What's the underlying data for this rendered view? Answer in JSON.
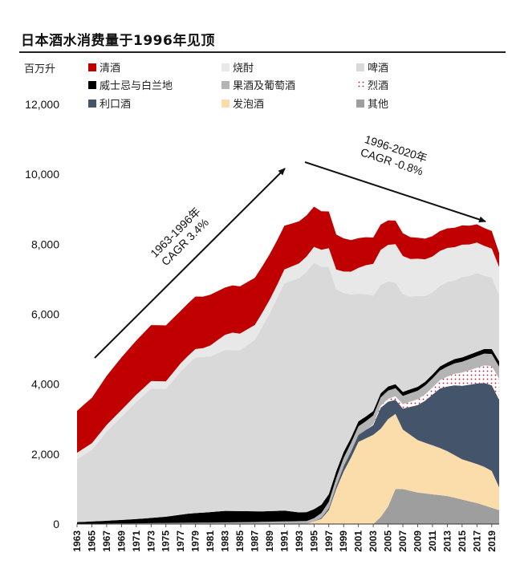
{
  "chart_data": {
    "type": "area",
    "title": "日本酒水消费量于1996年见顶",
    "ylabel": "百万升",
    "ylim": [
      0,
      12000
    ],
    "yticks": [
      0,
      2000,
      4000,
      6000,
      8000,
      10000,
      12000
    ],
    "ytick_labels": [
      "0",
      "2,000",
      "4,000",
      "6,000",
      "8,000",
      "10,000",
      "12,000"
    ],
    "x_tick_labels": [
      "1963",
      "1965",
      "1967",
      "1969",
      "1971",
      "1973",
      "1975",
      "1977",
      "1979",
      "1981",
      "1983",
      "1985",
      "1987",
      "1989",
      "1991",
      "1993",
      "1995",
      "1997",
      "1999",
      "2001",
      "2003",
      "2005",
      "2007",
      "2009",
      "2011",
      "2013",
      "2015",
      "2017",
      "2019"
    ],
    "legend_position": "top",
    "grid": false,
    "series": [
      {
        "name": "其他",
        "color": "#9e9e9e",
        "values": [
          [
            1963,
            0
          ],
          [
            1996,
            0
          ],
          [
            2003,
            0
          ],
          [
            2004,
            200
          ],
          [
            2005,
            500
          ],
          [
            2006,
            1000
          ],
          [
            2007,
            1000
          ],
          [
            2009,
            900
          ],
          [
            2013,
            800
          ],
          [
            2017,
            600
          ],
          [
            2020,
            400
          ]
        ]
      },
      {
        "name": "发泡酒",
        "color": "#fbdcab",
        "values": [
          [
            1963,
            0
          ],
          [
            1994,
            0
          ],
          [
            1996,
            150
          ],
          [
            1997,
            400
          ],
          [
            1998,
            1000
          ],
          [
            1999,
            1500
          ],
          [
            2000,
            1900
          ],
          [
            2001,
            2350
          ],
          [
            2003,
            2550
          ],
          [
            2005,
            2500
          ],
          [
            2006,
            2150
          ],
          [
            2007,
            1700
          ],
          [
            2009,
            1500
          ],
          [
            2012,
            1350
          ],
          [
            2015,
            1150
          ],
          [
            2018,
            1100
          ],
          [
            2019,
            1050
          ],
          [
            2020,
            650
          ]
        ]
      },
      {
        "name": "利口酒",
        "color": "#44546a",
        "values": [
          [
            1963,
            0
          ],
          [
            1995,
            0
          ],
          [
            1998,
            80
          ],
          [
            1999,
            150
          ],
          [
            2001,
            200
          ],
          [
            2003,
            280
          ],
          [
            2004,
            600
          ],
          [
            2006,
            400
          ],
          [
            2008,
            800
          ],
          [
            2010,
            1200
          ],
          [
            2012,
            1700
          ],
          [
            2014,
            2000
          ],
          [
            2016,
            2200
          ],
          [
            2018,
            2400
          ],
          [
            2020,
            2500
          ]
        ]
      },
      {
        "name": "烈酒",
        "color": "#c8102e",
        "pattern": "dots",
        "values": [
          [
            1963,
            0
          ],
          [
            2002,
            0
          ],
          [
            2005,
            80
          ],
          [
            2008,
            150
          ],
          [
            2011,
            200
          ],
          [
            2013,
            280
          ],
          [
            2015,
            380
          ],
          [
            2017,
            450
          ],
          [
            2020,
            600
          ]
        ]
      },
      {
        "name": "果酒及葡萄酒",
        "color": "#b4b4b4",
        "values": [
          [
            1963,
            5
          ],
          [
            1985,
            50
          ],
          [
            1990,
            70
          ],
          [
            1995,
            90
          ],
          [
            1998,
            230
          ],
          [
            2002,
            250
          ],
          [
            2006,
            230
          ],
          [
            2010,
            250
          ],
          [
            2014,
            300
          ],
          [
            2018,
            340
          ],
          [
            2020,
            350
          ]
        ]
      },
      {
        "name": "威士忌与白兰地",
        "color": "#000000",
        "values": [
          [
            1963,
            50
          ],
          [
            1967,
            80
          ],
          [
            1971,
            120
          ],
          [
            1975,
            180
          ],
          [
            1978,
            260
          ],
          [
            1981,
            300
          ],
          [
            1983,
            330
          ],
          [
            1985,
            320
          ],
          [
            1988,
            300
          ],
          [
            1991,
            310
          ],
          [
            1993,
            250
          ],
          [
            1995,
            260
          ],
          [
            1997,
            220
          ],
          [
            2000,
            150
          ],
          [
            2004,
            120
          ],
          [
            2010,
            110
          ],
          [
            2014,
            120
          ],
          [
            2018,
            130
          ],
          [
            2020,
            150
          ]
        ]
      },
      {
        "name": "啤酒",
        "color": "#d9d9d9",
        "values": [
          [
            1963,
            1800
          ],
          [
            1965,
            2050
          ],
          [
            1967,
            2550
          ],
          [
            1969,
            2950
          ],
          [
            1971,
            3350
          ],
          [
            1973,
            3700
          ],
          [
            1975,
            3650
          ],
          [
            1977,
            4100
          ],
          [
            1979,
            4450
          ],
          [
            1981,
            4450
          ],
          [
            1983,
            4600
          ],
          [
            1985,
            4600
          ],
          [
            1987,
            4900
          ],
          [
            1989,
            5650
          ],
          [
            1991,
            6500
          ],
          [
            1993,
            6700
          ],
          [
            1995,
            7050
          ],
          [
            1996,
            6800
          ],
          [
            1997,
            6500
          ],
          [
            1998,
            5200
          ],
          [
            1999,
            4550
          ],
          [
            2000,
            4100
          ],
          [
            2001,
            3650
          ],
          [
            2002,
            3500
          ],
          [
            2003,
            3300
          ],
          [
            2004,
            3100
          ],
          [
            2005,
            3000
          ],
          [
            2006,
            2900
          ],
          [
            2007,
            2800
          ],
          [
            2008,
            2650
          ],
          [
            2009,
            2600
          ],
          [
            2010,
            2450
          ],
          [
            2011,
            2350
          ],
          [
            2012,
            2300
          ],
          [
            2013,
            2300
          ],
          [
            2014,
            2250
          ],
          [
            2015,
            2300
          ],
          [
            2016,
            2250
          ],
          [
            2017,
            2250
          ],
          [
            2018,
            2100
          ],
          [
            2019,
            2050
          ],
          [
            2020,
            1900
          ]
        ]
      },
      {
        "name": "烧酎",
        "color": "#e8e8e8",
        "values": [
          [
            1963,
            180
          ],
          [
            1970,
            200
          ],
          [
            1975,
            220
          ],
          [
            1980,
            250
          ],
          [
            1984,
            500
          ],
          [
            1988,
            400
          ],
          [
            1990,
            380
          ],
          [
            1995,
            450
          ],
          [
            2000,
            650
          ],
          [
            2004,
            1000
          ],
          [
            2006,
            1100
          ],
          [
            2010,
            1050
          ],
          [
            2014,
            950
          ],
          [
            2018,
            850
          ],
          [
            2020,
            800
          ]
        ]
      },
      {
        "name": "清酒",
        "color": "#c00000",
        "values": [
          [
            1963,
            1200
          ],
          [
            1965,
            1300
          ],
          [
            1967,
            1400
          ],
          [
            1969,
            1500
          ],
          [
            1971,
            1550
          ],
          [
            1973,
            1600
          ],
          [
            1975,
            1600
          ],
          [
            1977,
            1500
          ],
          [
            1979,
            1500
          ],
          [
            1981,
            1450
          ],
          [
            1983,
            1350
          ],
          [
            1985,
            1350
          ],
          [
            1987,
            1350
          ],
          [
            1989,
            1300
          ],
          [
            1991,
            1250
          ],
          [
            1993,
            1200
          ],
          [
            1995,
            1150
          ],
          [
            1997,
            1050
          ],
          [
            1999,
            950
          ],
          [
            2001,
            850
          ],
          [
            2003,
            750
          ],
          [
            2005,
            700
          ],
          [
            2007,
            650
          ],
          [
            2009,
            600
          ],
          [
            2011,
            580
          ],
          [
            2013,
            560
          ],
          [
            2015,
            550
          ],
          [
            2017,
            520
          ],
          [
            2019,
            500
          ],
          [
            2020,
            400
          ]
        ]
      }
    ],
    "annotations": [
      {
        "text_lines": [
          "1963-1996年",
          "CAGR 3.4%"
        ]
      },
      {
        "text_lines": [
          "1996-2020年",
          "CAGR -0.8%"
        ]
      }
    ]
  }
}
